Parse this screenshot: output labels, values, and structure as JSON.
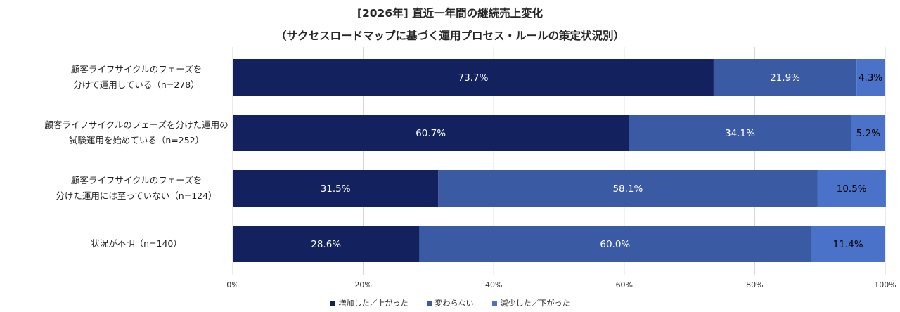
{
  "chart_data": {
    "type": "bar",
    "orientation": "horizontal",
    "stacked": true,
    "title": "[2026年] 直近一年間の継続売上変化",
    "subtitle": "（サクセスロードマップに基づく運用プロセス・ルールの策定状況別）",
    "categories": [
      [
        "顧客ライフサイクルのフェーズを",
        "分けて運用している（n=278）"
      ],
      [
        "顧客ライフサイクルのフェーズを分けた運用の",
        "試験運用を始めている（n=252）"
      ],
      [
        "顧客ライフサイクルのフェーズを",
        "分けた運用には至っていない（n=124）"
      ],
      [
        "状況が不明（n=140）"
      ]
    ],
    "series": [
      {
        "name": "増加した／上がった",
        "color": "#13225e",
        "label_color": "#ffffff",
        "values": [
          73.7,
          60.7,
          31.5,
          28.6
        ]
      },
      {
        "name": "変わらない",
        "color": "#3a5aa3",
        "label_color": "#ffffff",
        "values": [
          21.9,
          34.1,
          58.1,
          60.0
        ]
      },
      {
        "name": "減少した／下がった",
        "color": "#4a72c8",
        "label_color": "#000000",
        "values": [
          4.3,
          5.2,
          10.5,
          11.4
        ]
      }
    ],
    "value_suffix": "%",
    "xlim": [
      0,
      100
    ],
    "xticks": [
      0,
      20,
      40,
      60,
      80,
      100
    ],
    "xtick_labels": [
      "0%",
      "20%",
      "40%",
      "60%",
      "80%",
      "100%"
    ],
    "grid": true,
    "legend_position": "bottom"
  }
}
